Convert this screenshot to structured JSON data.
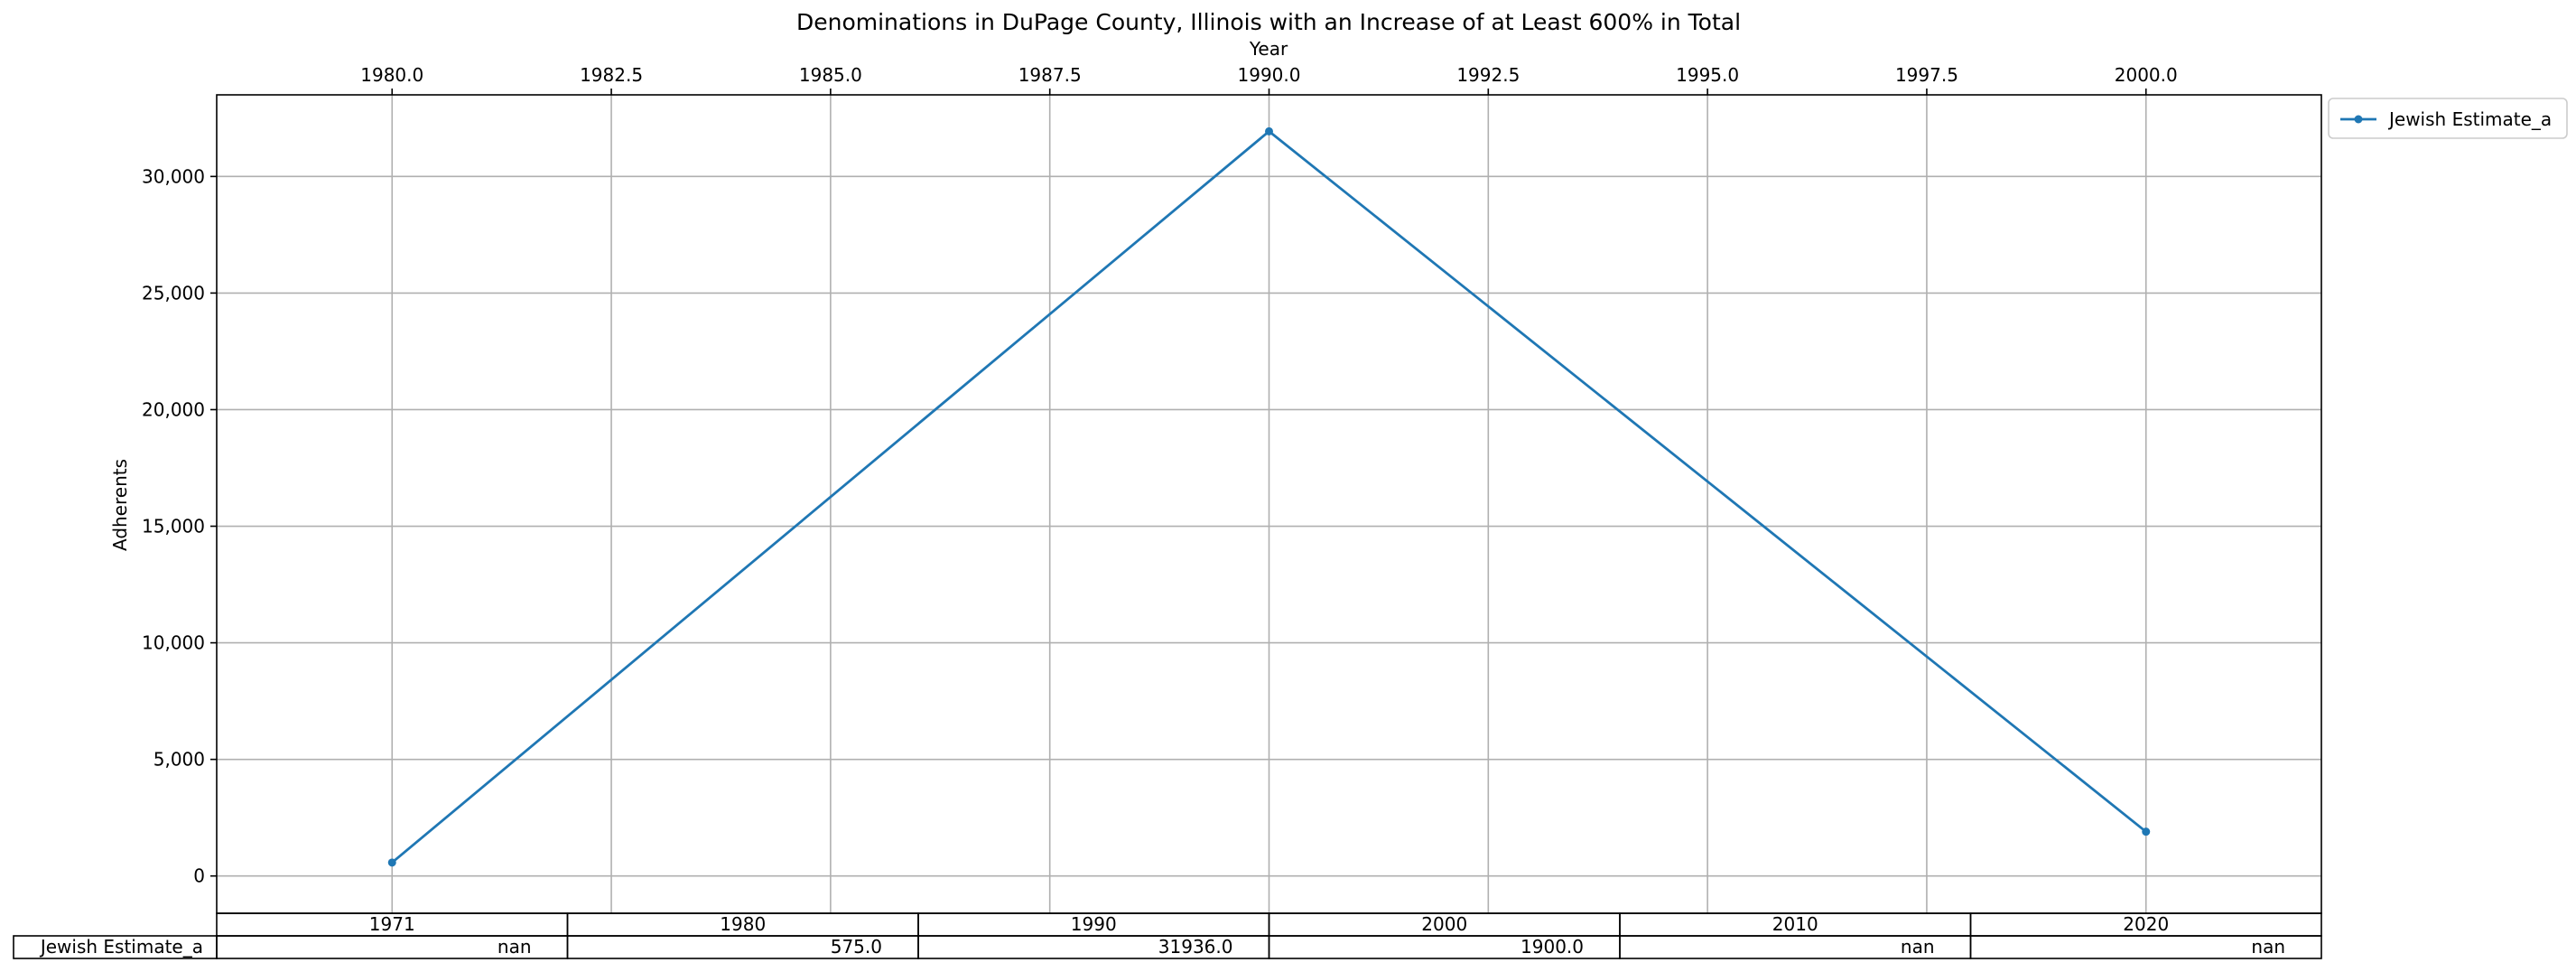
{
  "chart_data": {
    "type": "line",
    "title": "Denominations in DuPage County, Illinois with an Increase of at Least 600% in Total",
    "xlabel": "Year",
    "ylabel": "Adherents",
    "xlim": [
      1978.0,
      2002.0
    ],
    "ylim": [
      -1600,
      33500
    ],
    "x_ticks": [
      1980.0,
      1982.5,
      1985.0,
      1987.5,
      1990.0,
      1992.5,
      1995.0,
      1997.5,
      2000.0
    ],
    "x_tick_labels": [
      "1980.0",
      "1982.5",
      "1985.0",
      "1987.5",
      "1990.0",
      "1992.5",
      "1995.0",
      "1997.5",
      "2000.0"
    ],
    "y_ticks": [
      0,
      5000,
      10000,
      15000,
      20000,
      25000,
      30000
    ],
    "y_tick_labels": [
      "0",
      "5,000",
      "10,000",
      "15,000",
      "20,000",
      "25,000",
      "30,000"
    ],
    "x_axis_position": "top",
    "grid": true,
    "legend_position": "outside-top-right",
    "series": [
      {
        "name": "Jewish Estimate_a",
        "color": "#1f77b4",
        "marker": "dot",
        "x": [
          1980,
          1990,
          2000
        ],
        "y": [
          575.0,
          31936.0,
          1900.0
        ]
      }
    ],
    "table": {
      "columns": [
        "1971",
        "1980",
        "1990",
        "2000",
        "2010",
        "2020"
      ],
      "rows": [
        {
          "label": "Jewish Estimate_a",
          "values": [
            "nan",
            "575.0",
            "31936.0",
            "1900.0",
            "nan",
            "nan"
          ]
        }
      ]
    }
  }
}
